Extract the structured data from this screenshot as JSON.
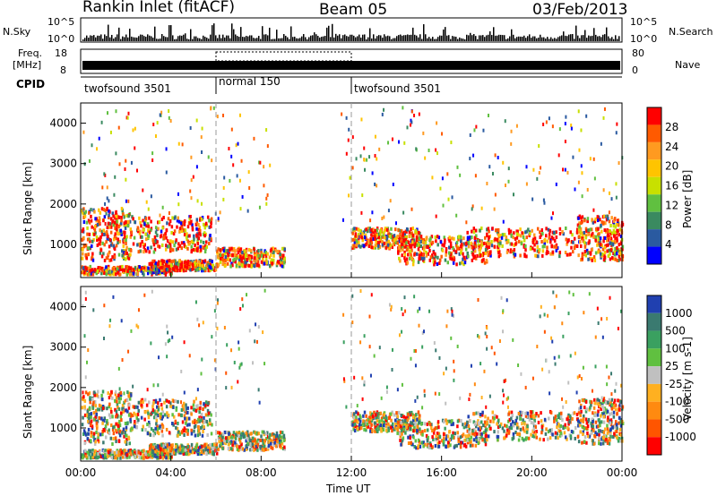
{
  "header": {
    "station": "Rankin Inlet (fitACF)",
    "beam": "Beam 05",
    "date": "03/Feb/2013"
  },
  "side_labels": {
    "nsky": "N.Sky",
    "nsearch": "N.Search",
    "freq": "Freq.",
    "freq_unit": "[MHz]",
    "nave": "Nave",
    "cpid": "CPID",
    "nsky_top": "10^5",
    "nsky_bot": "10^0",
    "freq_top": "18",
    "freq_bot": "8",
    "nave_top": "80",
    "nave_bot": "0"
  },
  "cpid_segments": [
    {
      "label": "twofsound 3501",
      "start_hr": 0,
      "end_hr": 6
    },
    {
      "label": "normal 150",
      "start_hr": 6,
      "end_hr": 12
    },
    {
      "label": "twofsound 3501",
      "start_hr": 12,
      "end_hr": 24
    }
  ],
  "chart_data": [
    {
      "type": "heatmap",
      "panel": "power",
      "xlabel": "Time UT",
      "ylabel": "Slant Range [km]",
      "x_range_hr": [
        0,
        24
      ],
      "ylim": [
        180,
        4500
      ],
      "xticks": [
        "00:00",
        "04:00",
        "08:00",
        "12:00",
        "16:00",
        "20:00",
        "00:00"
      ],
      "yticks": [
        1000,
        2000,
        3000,
        4000
      ],
      "colorbar_label": "Power [dB]",
      "colorbar_ticks": [
        "28",
        "24",
        "20",
        "16",
        "12",
        "8",
        "4"
      ],
      "colorbar_colors": [
        "#ff0000",
        "#ff5a00",
        "#ff9a20",
        "#ffc400",
        "#c8e000",
        "#60c040",
        "#3a8a60",
        "#2a5aa0",
        "#0000ff"
      ],
      "echo_regions_hr_km": [
        {
          "t": [
            0,
            2.2
          ],
          "r": [
            600,
            1900
          ],
          "level": "28"
        },
        {
          "t": [
            2.2,
            5.8
          ],
          "r": [
            800,
            1700
          ],
          "level": "24"
        },
        {
          "t": [
            0,
            4
          ],
          "r": [
            250,
            450
          ],
          "level": "28"
        },
        {
          "t": [
            3,
            6
          ],
          "r": [
            350,
            600
          ],
          "level": "24"
        },
        {
          "t": [
            6,
            9
          ],
          "r": [
            450,
            900
          ],
          "level": "24"
        },
        {
          "t": [
            12,
            15
          ],
          "r": [
            900,
            1400
          ],
          "level": "28"
        },
        {
          "t": [
            14,
            18
          ],
          "r": [
            500,
            1200
          ],
          "level": "24"
        },
        {
          "t": [
            17,
            22
          ],
          "r": [
            700,
            1400
          ],
          "level": "28"
        },
        {
          "t": [
            22,
            24
          ],
          "r": [
            600,
            1700
          ],
          "level": "20"
        }
      ]
    },
    {
      "type": "heatmap",
      "panel": "velocity",
      "xlabel": "Time UT",
      "ylabel": "Slant Range [km]",
      "x_range_hr": [
        0,
        24
      ],
      "ylim": [
        180,
        4500
      ],
      "xticks": [
        "00:00",
        "04:00",
        "08:00",
        "12:00",
        "16:00",
        "20:00",
        "00:00"
      ],
      "yticks": [
        1000,
        2000,
        3000,
        4000
      ],
      "colorbar_label": "Velocity [m s-1]",
      "colorbar_ticks": [
        "1000",
        "500",
        "100",
        "25",
        "-25",
        "-100",
        "-500",
        "-1000"
      ],
      "colorbar_colors": [
        "#2040b0",
        "#3a7a70",
        "#3aa060",
        "#60c040",
        "#c0c0c0",
        "#ffb020",
        "#ff8a10",
        "#ff5500",
        "#ff0000"
      ]
    }
  ]
}
